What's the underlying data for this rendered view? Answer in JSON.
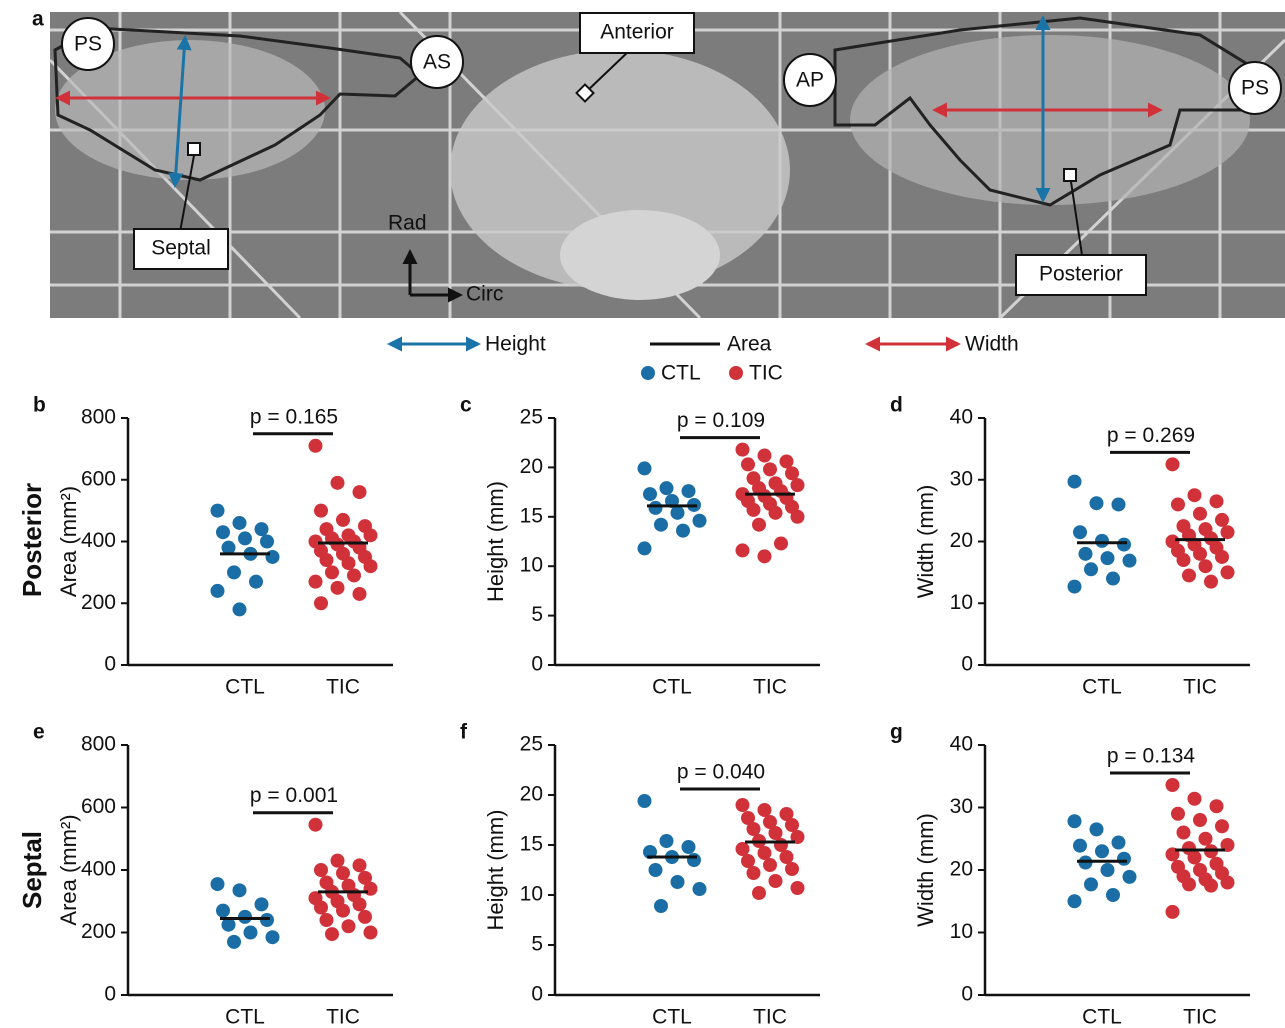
{
  "panel_a": {
    "label": "a",
    "markers": [
      "PS",
      "AS",
      "AP",
      "PS"
    ],
    "callouts": [
      "Anterior",
      "Septal",
      "Posterior"
    ],
    "axes": [
      "Rad",
      "Circ"
    ],
    "legend": [
      "Height",
      "Area",
      "Width"
    ]
  },
  "row_labels": [
    "Posterior",
    "Septal"
  ],
  "chart_data": [
    {
      "type": "strip",
      "panel": "b",
      "ylabel": "Area (mm²)",
      "categories": [
        "CTL",
        "TIC"
      ],
      "annotation": "p = 0.165",
      "ylim": [
        0,
        800
      ],
      "yticks": [
        0,
        200,
        400,
        600,
        800
      ],
      "series": [
        {
          "name": "CTL",
          "color": "#1b6ea5",
          "mean": 360,
          "values": [
            500,
            460,
            440,
            430,
            410,
            400,
            380,
            360,
            350,
            300,
            270,
            240,
            180
          ]
        },
        {
          "name": "TIC",
          "color": "#d1323a",
          "mean": 395,
          "values": [
            710,
            590,
            560,
            500,
            470,
            450,
            440,
            420,
            420,
            410,
            400,
            400,
            390,
            380,
            370,
            360,
            350,
            340,
            330,
            320,
            300,
            290,
            270,
            250,
            230,
            200
          ]
        }
      ]
    },
    {
      "type": "strip",
      "panel": "c",
      "ylabel": "Height (mm)",
      "categories": [
        "CTL",
        "TIC"
      ],
      "annotation": "p = 0.109",
      "ylim": [
        0,
        25
      ],
      "yticks": [
        0,
        5,
        10,
        15,
        20,
        25
      ],
      "series": [
        {
          "name": "CTL",
          "color": "#1b6ea5",
          "mean": 16.1,
          "values": [
            19.9,
            17.9,
            17.6,
            17.3,
            16.6,
            16.2,
            15.9,
            15.4,
            14.6,
            14.2,
            13.6,
            11.8
          ]
        },
        {
          "name": "TIC",
          "color": "#d1323a",
          "mean": 17.3,
          "values": [
            21.8,
            21.2,
            20.6,
            20.3,
            19.8,
            19.4,
            18.9,
            18.4,
            18.2,
            17.9,
            17.6,
            17.3,
            17.1,
            16.9,
            16.6,
            16.3,
            16.0,
            15.7,
            15.4,
            15.0,
            14.2,
            12.3,
            11.6,
            11.0
          ]
        }
      ]
    },
    {
      "type": "strip",
      "panel": "d",
      "ylabel": "Width (mm)",
      "categories": [
        "CTL",
        "TIC"
      ],
      "annotation": "p = 0.269",
      "ylim": [
        0,
        40
      ],
      "yticks": [
        0,
        10,
        20,
        30,
        40
      ],
      "series": [
        {
          "name": "CTL",
          "color": "#1b6ea5",
          "mean": 19.8,
          "values": [
            29.7,
            26.2,
            26.0,
            21.5,
            20.1,
            19.5,
            18.0,
            17.3,
            16.9,
            15.5,
            14.0,
            12.7
          ]
        },
        {
          "name": "TIC",
          "color": "#d1323a",
          "mean": 20.3,
          "values": [
            32.5,
            27.5,
            26.5,
            26.0,
            24.5,
            23.5,
            22.5,
            22.0,
            21.5,
            21.0,
            20.5,
            20.0,
            19.5,
            19.0,
            18.5,
            18.0,
            17.5,
            17.0,
            16.0,
            15.0,
            14.5,
            13.5
          ]
        }
      ]
    },
    {
      "type": "strip",
      "panel": "e",
      "ylabel": "Area (mm²)",
      "categories": [
        "CTL",
        "TIC"
      ],
      "annotation": "p = 0.001",
      "ylim": [
        0,
        800
      ],
      "yticks": [
        0,
        200,
        400,
        600,
        800
      ],
      "series": [
        {
          "name": "CTL",
          "color": "#1b6ea5",
          "mean": 245,
          "values": [
            355,
            335,
            290,
            270,
            250,
            240,
            225,
            200,
            185,
            170
          ]
        },
        {
          "name": "TIC",
          "color": "#d1323a",
          "mean": 330,
          "values": [
            545,
            430,
            415,
            400,
            390,
            375,
            360,
            350,
            340,
            330,
            320,
            310,
            300,
            290,
            280,
            270,
            250,
            240,
            220,
            200,
            195
          ]
        }
      ]
    },
    {
      "type": "strip",
      "panel": "f",
      "ylabel": "Height (mm)",
      "categories": [
        "CTL",
        "TIC"
      ],
      "annotation": "p = 0.040",
      "ylim": [
        0,
        25
      ],
      "yticks": [
        0,
        5,
        10,
        15,
        20,
        25
      ],
      "series": [
        {
          "name": "CTL",
          "color": "#1b6ea5",
          "mean": 13.8,
          "values": [
            19.4,
            15.4,
            14.8,
            14.3,
            13.8,
            13.5,
            12.5,
            11.3,
            10.6,
            8.9
          ]
        },
        {
          "name": "TIC",
          "color": "#d1323a",
          "mean": 15.3,
          "values": [
            19.0,
            18.5,
            18.1,
            17.7,
            17.3,
            17.0,
            16.6,
            16.2,
            15.8,
            15.4,
            15.0,
            14.6,
            14.2,
            13.8,
            13.4,
            13.0,
            12.6,
            12.2,
            11.4,
            10.7,
            10.2
          ]
        }
      ]
    },
    {
      "type": "strip",
      "panel": "g",
      "ylabel": "Width (mm)",
      "categories": [
        "CTL",
        "TIC"
      ],
      "annotation": "p = 0.134",
      "ylim": [
        0,
        40
      ],
      "yticks": [
        0,
        10,
        20,
        30,
        40
      ],
      "series": [
        {
          "name": "CTL",
          "color": "#1b6ea5",
          "mean": 21.4,
          "values": [
            27.8,
            26.5,
            24.4,
            23.9,
            23.0,
            21.8,
            21.2,
            20.0,
            18.9,
            17.7,
            16.0,
            15.0
          ]
        },
        {
          "name": "TIC",
          "color": "#d1323a",
          "mean": 23.2,
          "values": [
            33.6,
            31.4,
            30.2,
            29.0,
            28.0,
            27.0,
            26.0,
            25.0,
            24.0,
            23.5,
            23.0,
            22.5,
            22.0,
            21.0,
            20.5,
            20.0,
            19.5,
            19.0,
            18.5,
            18.0,
            17.7,
            17.5,
            13.3
          ]
        }
      ]
    }
  ]
}
